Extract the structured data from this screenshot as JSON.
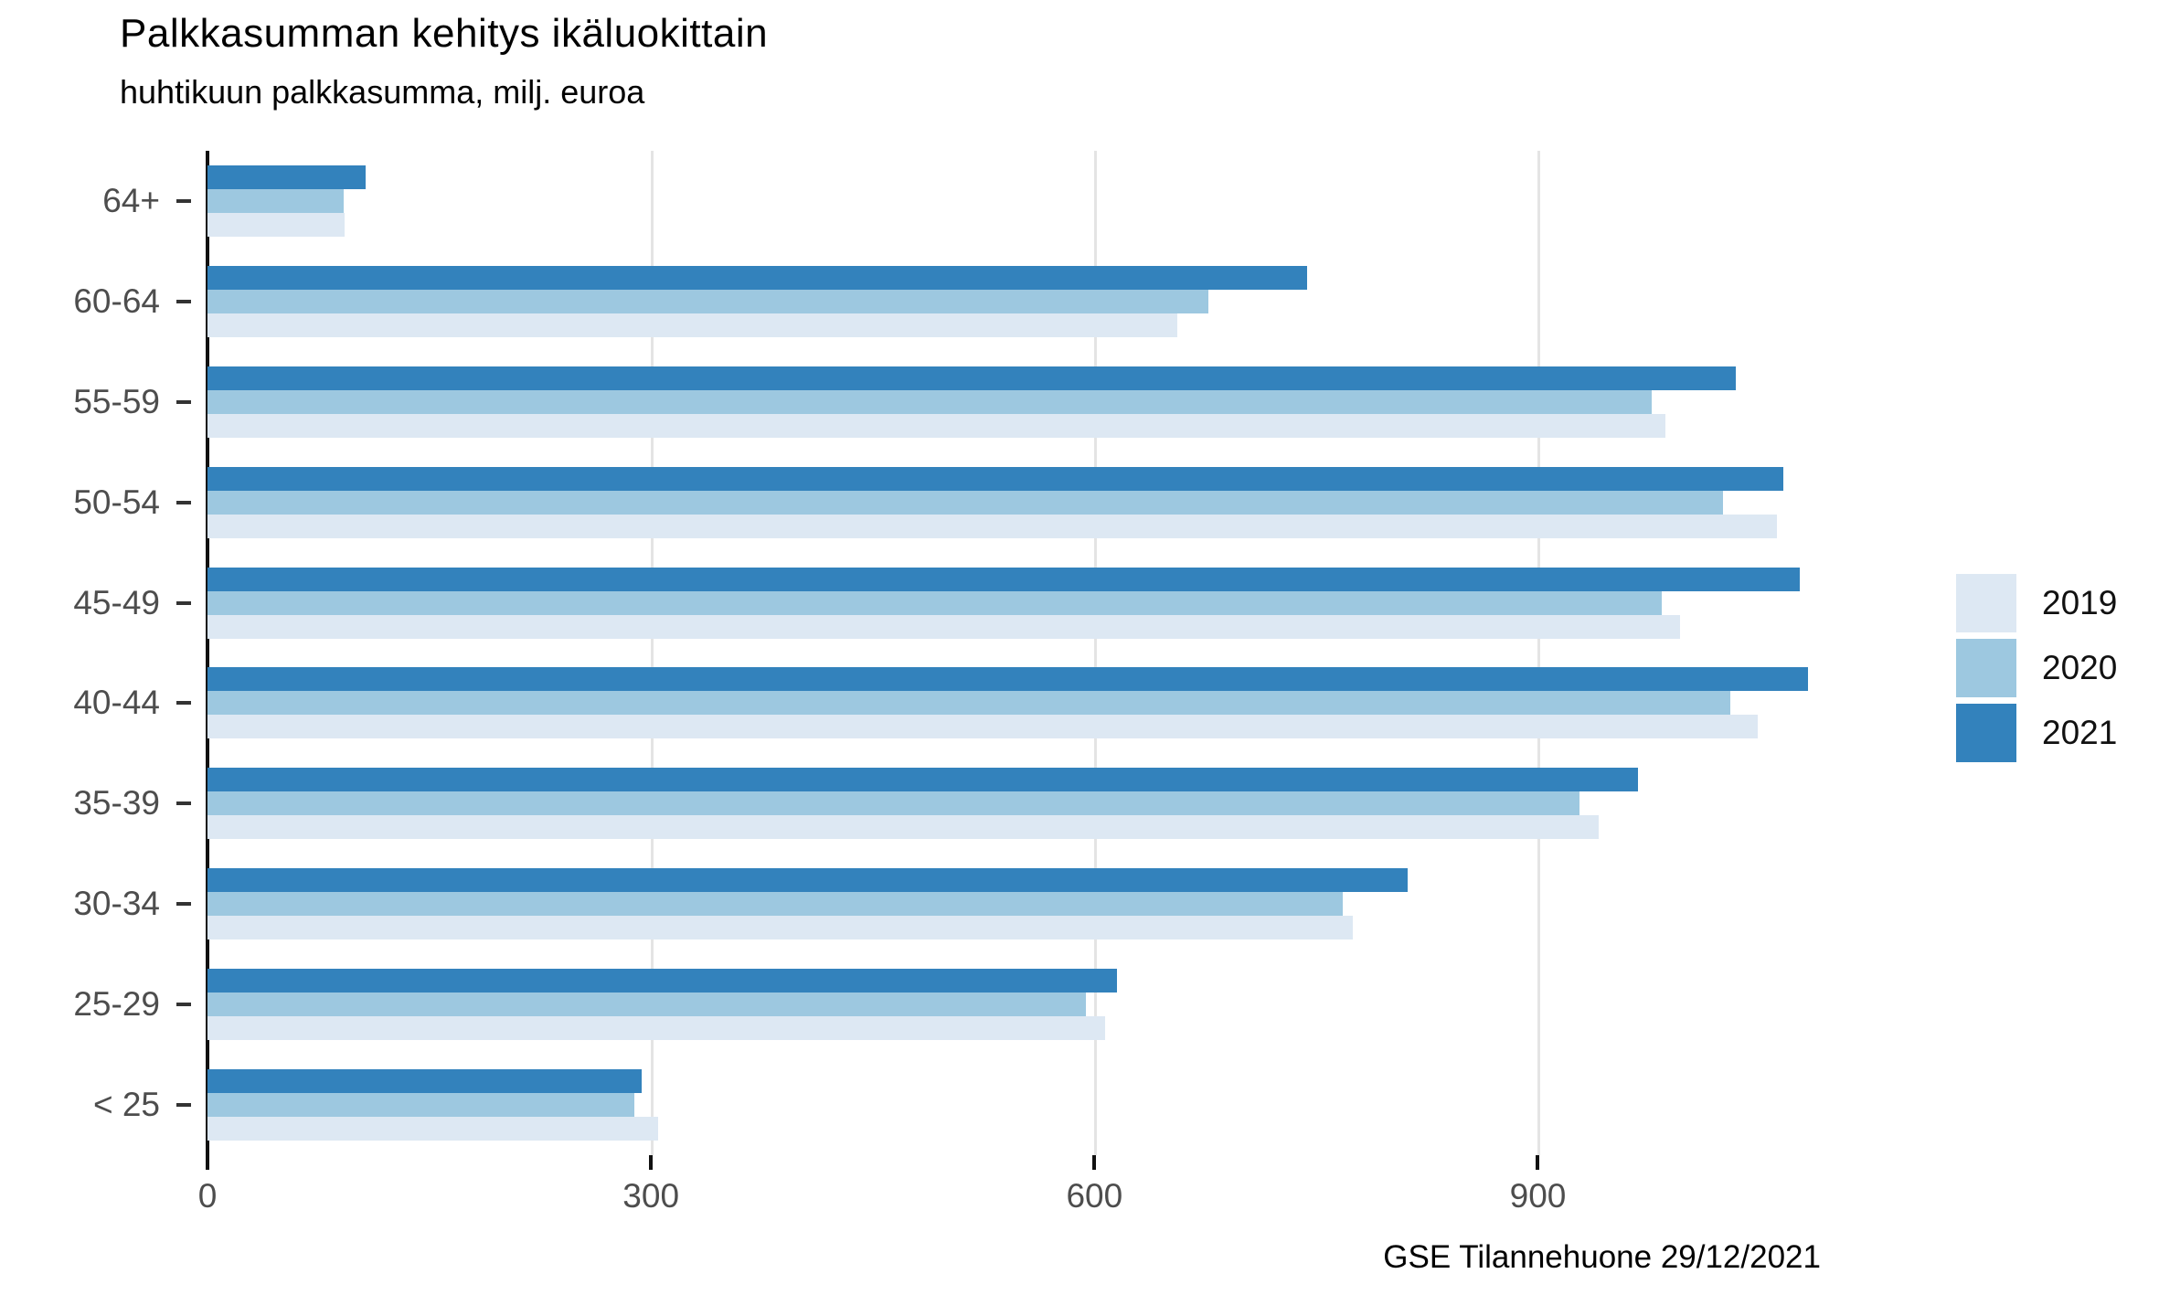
{
  "title": "Palkkasumman kehitys ikäluokittain",
  "subtitle": "huhtikuun palkkasumma, milj. euroa",
  "caption": "GSE Tilannehuone 29/12/2021",
  "legend": {
    "position": "right",
    "items": [
      {
        "label": "2019",
        "color": "#dde8f3"
      },
      {
        "label": "2020",
        "color": "#9dc8e0"
      },
      {
        "label": "2021",
        "color": "#3382bc"
      }
    ]
  },
  "chart_data": {
    "type": "bar",
    "orientation": "horizontal",
    "title": "Palkkasumman kehitys ikäluokittain",
    "subtitle": "huhtikuun palkkasumma, milj. euroa",
    "caption": "GSE Tilannehuone 29/12/2021",
    "categories": [
      "64+",
      "60-64",
      "55-59",
      "50-54",
      "45-49",
      "40-44",
      "35-39",
      "30-34",
      "25-29",
      "< 25"
    ],
    "series": [
      {
        "name": "2019",
        "color": "#dde8f3",
        "values": [
          93,
          656,
          986,
          1062,
          996,
          1049,
          941,
          775,
          607,
          305
        ]
      },
      {
        "name": "2020",
        "color": "#9dc8e0",
        "values": [
          92,
          677,
          977,
          1025,
          984,
          1030,
          928,
          768,
          594,
          289
        ]
      },
      {
        "name": "2021",
        "color": "#3382bc",
        "values": [
          107,
          744,
          1034,
          1066,
          1077,
          1083,
          968,
          812,
          615,
          294
        ]
      }
    ],
    "bar_order_top_to_bottom": [
      "2021",
      "2020",
      "2019"
    ],
    "x_ticks": [
      0,
      300,
      600,
      900
    ],
    "xlim": [
      0,
      1139
    ],
    "xlabel": "",
    "ylabel": "",
    "grid": "vertical-major",
    "legend_position": "right"
  }
}
